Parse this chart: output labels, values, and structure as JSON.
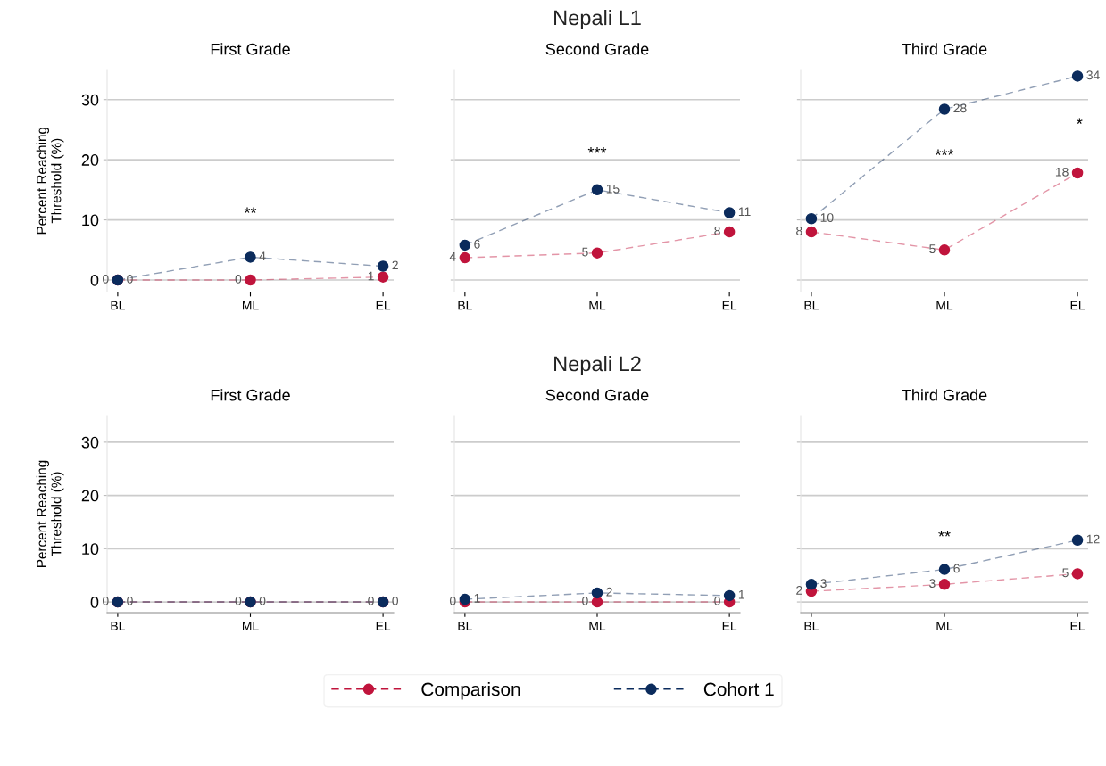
{
  "chart_data": [
    {
      "type": "line",
      "title": "First Grade",
      "ylabel": "Percent Reaching\nThreshold (%)",
      "categories": [
        "BL",
        "ML",
        "EL"
      ],
      "ylim": [
        -2,
        35
      ],
      "yticks": [
        0,
        10,
        20,
        30
      ],
      "grid": "y",
      "marker": "circle",
      "line_style": "dashed",
      "legend": "bottom",
      "series": [
        {
          "name": "Comparison",
          "color": "#c0143c",
          "values": [
            0,
            0,
            0.5
          ],
          "value_labels": [
            "0",
            "0",
            "1"
          ]
        },
        {
          "name": "Cohort 1",
          "color": "#0b2b5c",
          "values": [
            0,
            3.8,
            2.3
          ],
          "value_labels": [
            "0",
            "4",
            "2"
          ]
        }
      ],
      "annotations": [
        "**"
      ]
    },
    {
      "type": "line",
      "title": "Nepali L1",
      "subtitle": "Second Grade",
      "categories": [
        "BL",
        "ML",
        "EL"
      ],
      "ylim": [
        -2,
        35
      ],
      "yticks": [
        0,
        10,
        20,
        30
      ],
      "grid": "y",
      "marker": "circle",
      "line_style": "dashed",
      "tick_labels": "x",
      "series": [
        {
          "color": "#c0143c",
          "values": [
            3.7,
            4.5,
            8
          ],
          "value_labels": [
            "4",
            "5",
            "8"
          ]
        },
        {
          "color": "#0b2b5c",
          "values": [
            5.8,
            15,
            11.2
          ],
          "value_labels": [
            "6",
            "15",
            "11"
          ]
        }
      ],
      "annotations": [
        "***"
      ]
    },
    {
      "type": "line",
      "title": "Third Grade",
      "categories": [
        "BL",
        "ML",
        "EL"
      ],
      "ylim": [
        -2,
        35
      ],
      "yticks": [
        0,
        10,
        20,
        30
      ],
      "grid": "y",
      "marker": "circle",
      "line_style": "dashed",
      "tick_labels": "x",
      "series": [
        {
          "color": "#c0143c",
          "values": [
            8,
            5,
            17.8
          ],
          "value_labels": [
            "8",
            "5",
            "18"
          ]
        },
        {
          "color": "#0b2b5c",
          "values": [
            10.2,
            28.4,
            33.9
          ],
          "value_labels": [
            "10",
            "28",
            "34"
          ]
        }
      ],
      "annotations": [
        "***",
        "*"
      ]
    },
    {
      "type": "line",
      "title": "First Grade",
      "ylabel": "Percent Reaching\nThreshold (%)",
      "categories": [
        "BL",
        "ML",
        "EL"
      ],
      "ylim": [
        -2,
        35
      ],
      "yticks": [
        0,
        10,
        20,
        30
      ],
      "grid": "y",
      "marker": "circle",
      "line_style": "dashed",
      "series": [
        {
          "color": "#c0143c",
          "values": [
            0,
            0,
            0
          ],
          "value_labels": [
            "0",
            "0",
            "0"
          ]
        },
        {
          "color": "#0b2b5c",
          "values": [
            0,
            0,
            0
          ],
          "value_labels": [
            "0",
            "0",
            "0"
          ]
        }
      ]
    },
    {
      "type": "line",
      "title": "Nepali L2",
      "subtitle": "Second Grade",
      "categories": [
        "BL",
        "ML",
        "EL"
      ],
      "ylim": [
        -2,
        35
      ],
      "yticks": [
        0,
        10,
        20,
        30
      ],
      "grid": "y",
      "marker": "circle",
      "line_style": "dashed",
      "tick_labels": "x",
      "series": [
        {
          "color": "#c0143c",
          "values": [
            0,
            0,
            0
          ],
          "value_labels": [
            "0",
            "0",
            "0"
          ]
        },
        {
          "color": "#0b2b5c",
          "values": [
            0.5,
            1.7,
            1.2
          ],
          "value_labels": [
            "1",
            "2",
            "1"
          ]
        }
      ]
    },
    {
      "type": "line",
      "title": "Third Grade",
      "categories": [
        "BL",
        "ML",
        "EL"
      ],
      "ylim": [
        -2,
        35
      ],
      "yticks": [
        0,
        10,
        20,
        30
      ],
      "grid": "y",
      "marker": "circle",
      "line_style": "dashed",
      "tick_labels": "x",
      "series": [
        {
          "color": "#c0143c",
          "values": [
            2,
            3.3,
            5.3
          ],
          "value_labels": [
            "2",
            "3",
            "5"
          ]
        },
        {
          "color": "#0b2b5c",
          "values": [
            3.3,
            6.1,
            11.6
          ],
          "value_labels": [
            "3",
            "6",
            "12"
          ]
        }
      ],
      "annotations": [
        "**"
      ]
    }
  ]
}
